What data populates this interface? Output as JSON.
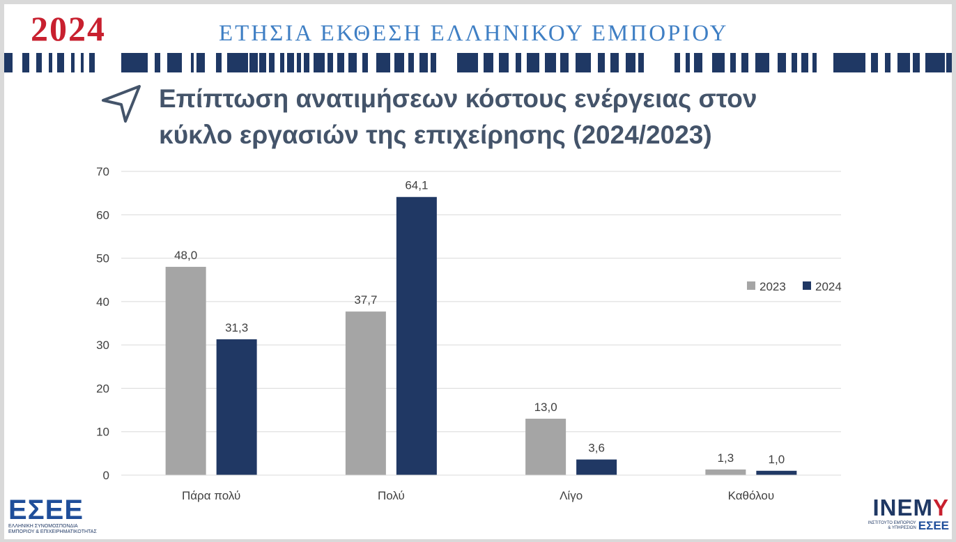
{
  "header": {
    "year": "2024",
    "report_title": "ΕΤΗΣΙΑ ΕΚΘΕΣΗ ΕΛΛΗΝΙΚΟΥ ΕΜΠΟΡΙΟΥ"
  },
  "slide_title": "Επίπτωση ανατιμήσεων κόστους ενέργειας στον κύκλο εργασιών της επιχείρησης (2024/2023)",
  "colors": {
    "year": "#c8202f",
    "report_title": "#3f7fc4",
    "stripe": "#1f3864",
    "title": "#44546a",
    "series_2023": "#a5a5a5",
    "series_2024": "#203864"
  },
  "chart_data": {
    "type": "bar",
    "categories": [
      "Πάρα πολύ",
      "Πολύ",
      "Λίγο",
      "Καθόλου"
    ],
    "series": [
      {
        "name": "2023",
        "values": [
          48.0,
          37.7,
          13.0,
          1.3
        ],
        "labels": [
          "48,0",
          "37,7",
          "13,0",
          "1,3"
        ],
        "color": "#a5a5a5"
      },
      {
        "name": "2024",
        "values": [
          31.3,
          64.1,
          3.6,
          1.0
        ],
        "labels": [
          "31,3",
          "64,1",
          "3,6",
          "1,0"
        ],
        "color": "#203864"
      }
    ],
    "ylim": [
      0,
      70
    ],
    "yticks": [
      0,
      10,
      20,
      30,
      40,
      50,
      60,
      70
    ],
    "grid": true,
    "legend_position": "right"
  },
  "logos": {
    "left_main": "ΕΣΕΕ",
    "left_sub_1": "ΕΛΛΗΝΙΚΗ ΣΥΝΟΜΟΣΠΟΝΔΙΑ",
    "left_sub_2": "ΕΜΠΟΡΙΟΥ & ΕΠΙΧΕΙΡΗΜΑΤΙΚΟΤΗΤΑΣ",
    "right_main_a": "INEM",
    "right_main_b": "Y",
    "right_sub_1": "ΙΝΣΤΙΤΟΥΤΟ ΕΜΠΟΡΙΟΥ",
    "right_sub_2": "& ΥΠΗΡΕΣΙΩΝ",
    "right_sub_esee": "ΕΣΕΕ"
  }
}
